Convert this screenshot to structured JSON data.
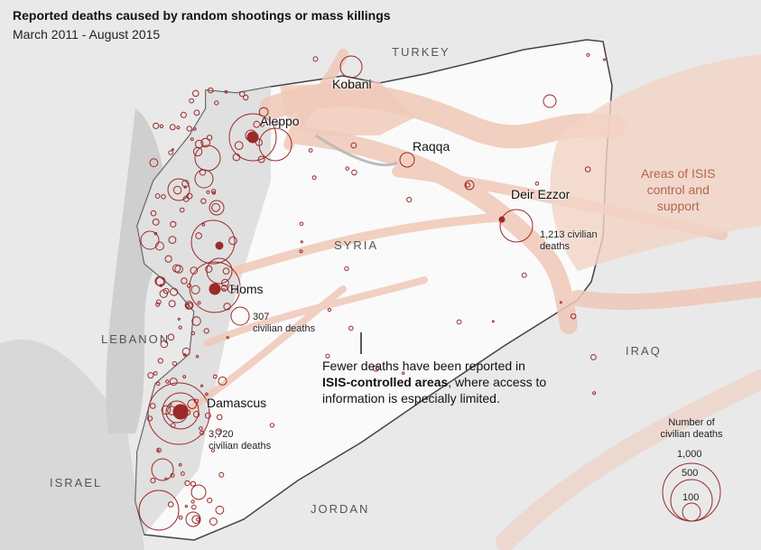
{
  "header": {
    "title": "Reported deaths caused by random shootings or mass killings",
    "subtitle": "March 2011 - August 2015"
  },
  "countries": {
    "turkey": "TURKEY",
    "syria": "SYRIA",
    "lebanon": "LEBANON",
    "iraq": "IRAQ",
    "israel": "ISRAEL",
    "jordan": "JORDAN"
  },
  "cities": {
    "kobani": "Kobani",
    "aleppo": "Aleppo",
    "raqqa": "Raqqa",
    "deir_ezzor": "Deir Ezzor",
    "homs": "Homs",
    "damascus": "Damascus"
  },
  "death_labels": {
    "deir_ezzor": {
      "count": "1,213 civilian",
      "unit": "deaths"
    },
    "homs": {
      "count": "307",
      "unit": "civilian deaths"
    },
    "damascus": {
      "count": "3,720",
      "unit": "civilian deaths"
    }
  },
  "isis_label": {
    "line1": "Areas of ISIS",
    "line2": "control and",
    "line3": "support"
  },
  "note": {
    "line1": "Fewer deaths have been reported in",
    "bold": "ISIS-controlled areas",
    "line2_rest": ", where access to",
    "line3": "information is especially limited."
  },
  "legend": {
    "title1": "Number of",
    "title2": "civilian deaths",
    "values": [
      "1,000",
      "500",
      "100"
    ]
  },
  "colors": {
    "circle": "#9b2a2a",
    "isis_area": "#f0c8b8",
    "syria_land": "#ffffff",
    "neighbors": "#e4e4e4"
  }
}
